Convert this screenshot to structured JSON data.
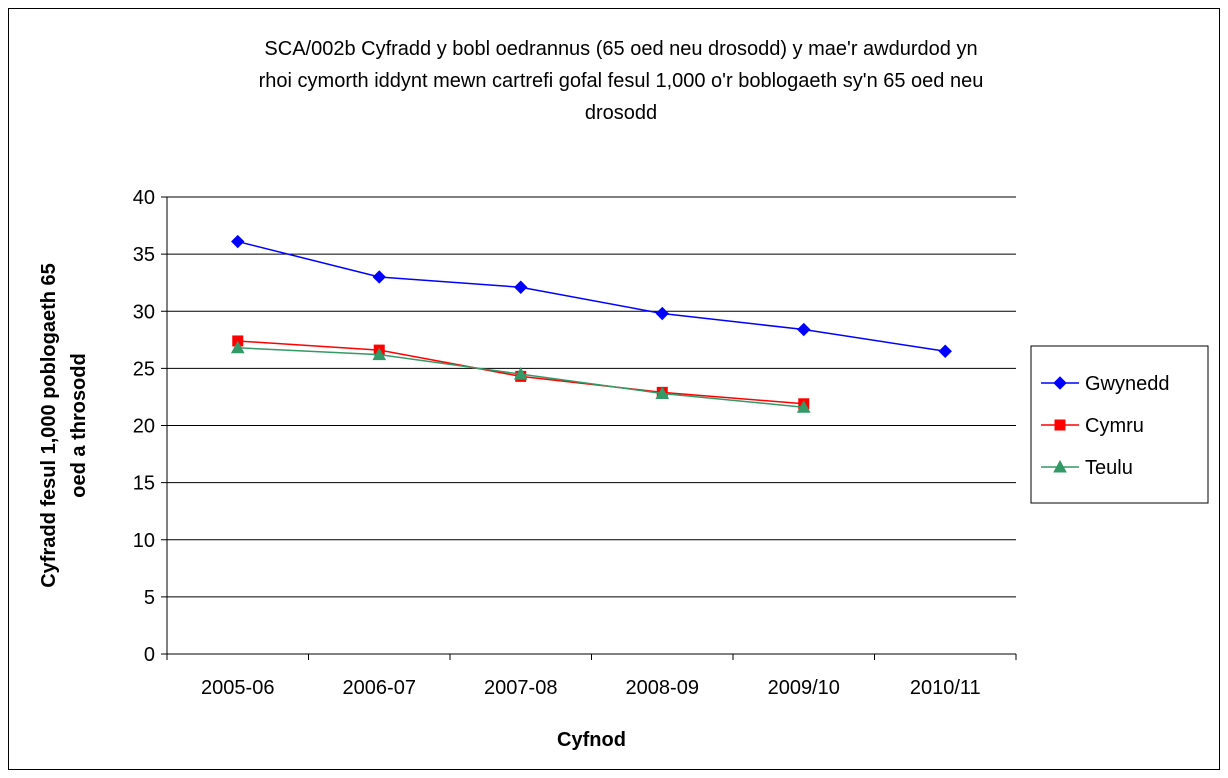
{
  "chart_data": {
    "type": "line",
    "title": "SCA/002b Cyfradd y bobl oedrannus (65 oed neu drosodd) y mae'r awdurdod yn rhoi cymorth iddynt mewn cartrefi gofal fesul 1,000 o'r boblogaeth sy'n 65 oed neu drosodd",
    "title_lines": [
      "SCA/002b Cyfradd y bobl oedrannus (65 oed neu drosodd) y mae'r awdurdod yn",
      "rhoi cymorth iddynt mewn cartrefi gofal fesul 1,000 o'r boblogaeth sy'n 65 oed neu",
      "drosodd"
    ],
    "xlabel": "Cyfnod",
    "ylabel": "Cyfradd fesul 1,000 poblogaeth 65 oed a throsodd",
    "ylabel_lines": [
      "Cyfradd fesul 1,000 poblogaeth 65",
      "oed a throsodd"
    ],
    "categories": [
      "2005-06",
      "2006-07",
      "2007-08",
      "2008-09",
      "2009/10",
      "2010/11"
    ],
    "ylim": [
      0,
      40
    ],
    "yticks": [
      0,
      5,
      10,
      15,
      20,
      25,
      30,
      35,
      40
    ],
    "grid": true,
    "legend_position": "right",
    "series": [
      {
        "name": "Gwynedd",
        "values": [
          36.1,
          33.0,
          32.1,
          29.8,
          28.4,
          26.5
        ],
        "color": "#0000FF",
        "marker": "diamond"
      },
      {
        "name": "Cymru",
        "values": [
          27.4,
          26.6,
          24.3,
          22.9,
          21.9,
          null
        ],
        "color": "#FF0000",
        "marker": "square"
      },
      {
        "name": "Teulu",
        "values": [
          26.8,
          26.2,
          24.5,
          22.8,
          21.6,
          null
        ],
        "color": "#339966",
        "marker": "triangle"
      }
    ]
  }
}
